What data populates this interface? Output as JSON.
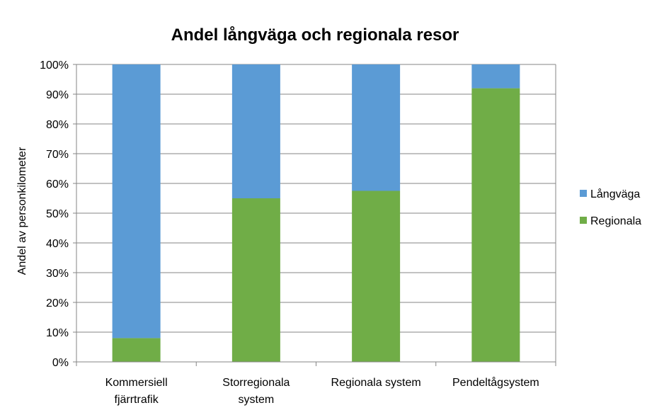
{
  "chart_data": {
    "type": "bar",
    "stacked": true,
    "title": "Andel långväga och regionala resor",
    "xlabel": "",
    "ylabel": "Andel av personkilometer",
    "ylim": [
      0,
      100
    ],
    "yticks": [
      "0%",
      "10%",
      "20%",
      "30%",
      "40%",
      "50%",
      "60%",
      "70%",
      "80%",
      "90%",
      "100%"
    ],
    "categories": [
      [
        "Kommersiell",
        "fjärrtrafik"
      ],
      [
        "Storregionala",
        "system"
      ],
      [
        "Regionala system"
      ],
      [
        "Pendeltågsystem"
      ]
    ],
    "series": [
      {
        "name": "Regionala",
        "color": "#70ad47",
        "values": [
          8,
          55,
          57.5,
          92
        ]
      },
      {
        "name": "Långväga",
        "color": "#5b9bd5",
        "values": [
          92,
          45,
          42.5,
          8
        ]
      }
    ],
    "legend_order": [
      "Långväga",
      "Regionala"
    ],
    "legend_position": "right",
    "grid": true,
    "gridline_color": "#868686"
  }
}
